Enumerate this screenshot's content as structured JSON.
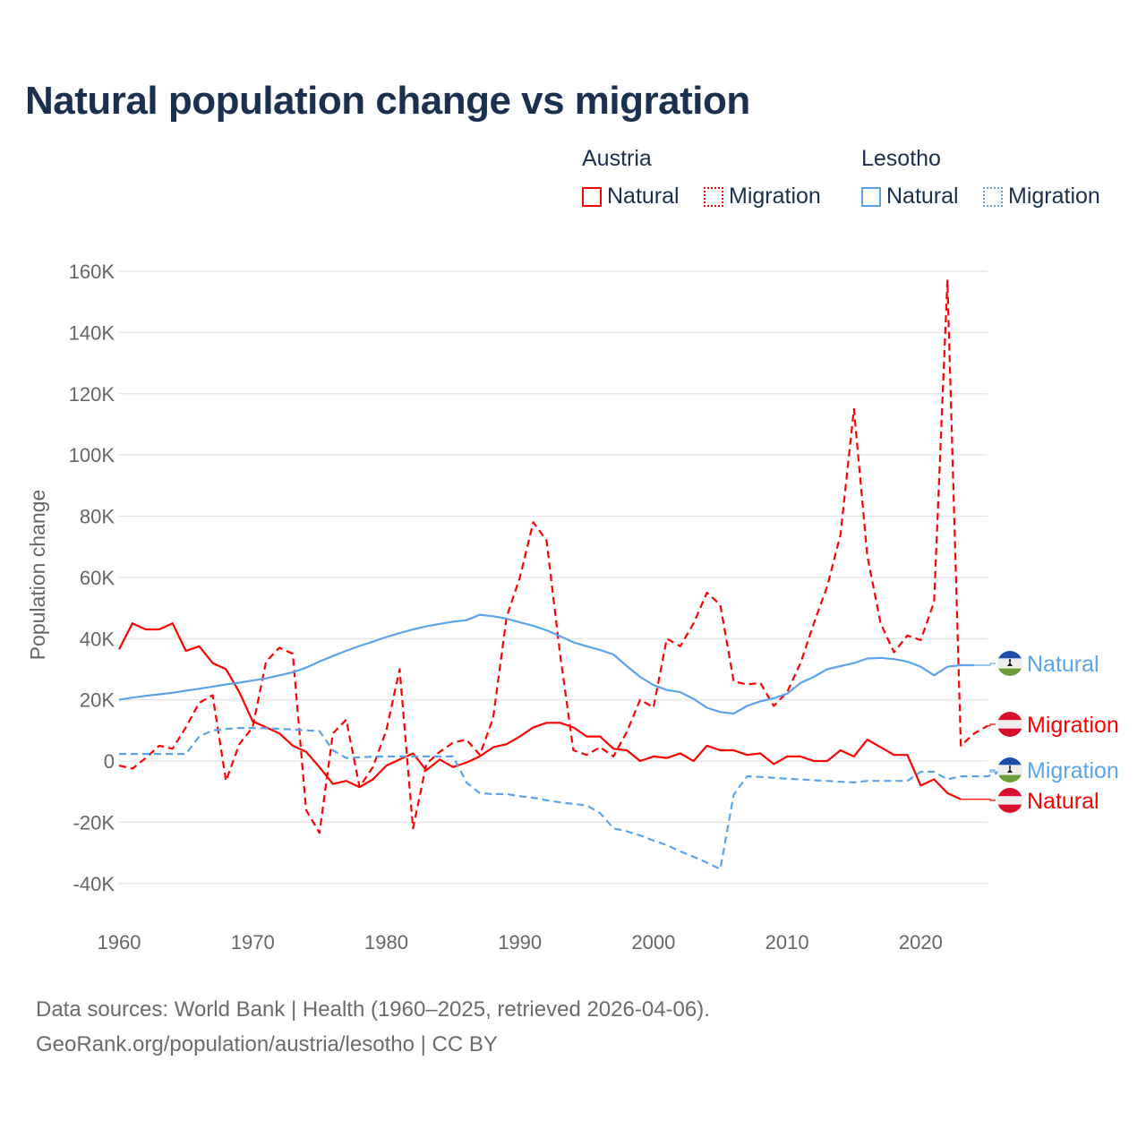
{
  "chart_data": {
    "type": "line",
    "title": "Natural population change vs migration",
    "ylabel": "Population change",
    "xlabel": "",
    "ylim": [
      -40000,
      160000
    ],
    "xlim": [
      1960,
      2025
    ],
    "y_ticks": [
      -40000,
      -20000,
      0,
      20000,
      40000,
      60000,
      80000,
      100000,
      120000,
      140000,
      160000
    ],
    "y_tick_labels": [
      "-40K",
      "-20K",
      "0",
      "20K",
      "40K",
      "60K",
      "80K",
      "100K",
      "120K",
      "140K",
      "160K"
    ],
    "x_ticks": [
      1960,
      1970,
      1980,
      1990,
      2000,
      2010,
      2020
    ],
    "x_tick_labels": [
      "1960",
      "1970",
      "1980",
      "1990",
      "2000",
      "2010",
      "2020"
    ],
    "grid": true,
    "legend": {
      "placement": "top-right",
      "groups": [
        {
          "name": "Austria",
          "entries": [
            "Natural",
            "Migration"
          ]
        },
        {
          "name": "Lesotho",
          "entries": [
            "Natural",
            "Migration"
          ]
        }
      ]
    },
    "series": [
      {
        "name": "Austria Natural",
        "country": "Austria",
        "kind": "Natural",
        "color": "#ff0000",
        "dashed": false,
        "start_year": 1960,
        "end_label": "Natural",
        "values": [
          36500,
          45000,
          43000,
          43000,
          45000,
          36000,
          37500,
          32000,
          30000,
          22500,
          13000,
          11000,
          9000,
          5000,
          3000,
          -2000,
          -7500,
          -6500,
          -8500,
          -6000,
          -1500,
          500,
          2500,
          -3000,
          500,
          -2000,
          -500,
          1500,
          4500,
          5500,
          8000,
          11000,
          12500,
          12500,
          11000,
          8000,
          8000,
          4000,
          3500,
          0,
          1500,
          1000,
          2500,
          0,
          5000,
          3500,
          3500,
          2000,
          2500,
          -1000,
          1500,
          1500,
          0,
          0,
          3500,
          1500,
          7000,
          4500,
          2000,
          2000,
          -8000,
          -6000,
          -10500,
          -12500
        ]
      },
      {
        "name": "Austria Migration",
        "country": "Austria",
        "kind": "Migration",
        "color": "#ff0000",
        "dashed": true,
        "start_year": 1960,
        "end_label": "Migration",
        "values": [
          -1500,
          -2500,
          1000,
          5000,
          4000,
          11000,
          19000,
          21500,
          -6500,
          5500,
          11000,
          32500,
          37000,
          35000,
          -16000,
          -23500,
          9000,
          13500,
          -8500,
          -2000,
          10000,
          30000,
          -22000,
          -1000,
          3000,
          6000,
          7000,
          2000,
          14000,
          47000,
          60000,
          78000,
          72000,
          35000,
          3500,
          2000,
          4500,
          1500,
          9500,
          20000,
          17500,
          40000,
          37500,
          45000,
          55000,
          51000,
          26000,
          25000,
          25500,
          18000,
          22500,
          32000,
          45000,
          57000,
          74000,
          115000,
          67000,
          45000,
          35500,
          41000,
          39500,
          52000,
          157000,
          5000,
          9000,
          11500
        ]
      },
      {
        "name": "Lesotho Natural",
        "country": "Lesotho",
        "kind": "Natural",
        "color": "#5ba3ea",
        "dashed": false,
        "start_year": 1960,
        "end_label": "Natural",
        "values": [
          20000,
          20700,
          21300,
          21800,
          22300,
          23000,
          23600,
          24300,
          25000,
          25600,
          26300,
          27000,
          28000,
          29000,
          30500,
          32500,
          34300,
          36000,
          37600,
          39000,
          40500,
          41800,
          43000,
          44000,
          44800,
          45500,
          46000,
          47800,
          47300,
          46500,
          45300,
          44200,
          42700,
          40800,
          38800,
          37500,
          36300,
          34800,
          31000,
          27500,
          24800,
          23200,
          22500,
          20300,
          17400,
          16000,
          15500,
          18000,
          19500,
          20500,
          22000,
          25500,
          27500,
          30000,
          31000,
          32000,
          33500,
          33700,
          33300,
          32500,
          30800,
          28000,
          30800,
          31300,
          31300
        ]
      },
      {
        "name": "Lesotho Migration",
        "country": "Lesotho",
        "kind": "Migration",
        "color": "#5ba3ea",
        "dashed": true,
        "start_year": 1960,
        "end_label": "Migration",
        "values": [
          2300,
          2300,
          2300,
          2300,
          2300,
          2300,
          8000,
          10000,
          10500,
          10800,
          10800,
          10700,
          10500,
          10300,
          10000,
          9800,
          3500,
          1000,
          1200,
          1400,
          1500,
          1500,
          1500,
          1500,
          1500,
          1500,
          -7000,
          -10500,
          -10800,
          -10800,
          -11500,
          -12000,
          -12800,
          -13500,
          -14000,
          -14500,
          -17000,
          -22000,
          -23000,
          -24300,
          -26000,
          -27500,
          -29500,
          -31300,
          -33200,
          -35300,
          -11000,
          -5000,
          -5200,
          -5500,
          -5800,
          -6000,
          -6300,
          -6500,
          -6800,
          -7000,
          -6500,
          -6500,
          -6500,
          -6500,
          -3500,
          -3500,
          -6000,
          -5000,
          -5000,
          -5000,
          -3500
        ]
      }
    ]
  },
  "source": {
    "line1": "Data sources: World Bank | Health (1960–2025, retrieved 2026-04-06).",
    "line2": "GeoRank.org/population/austria/lesotho | CC BY"
  }
}
